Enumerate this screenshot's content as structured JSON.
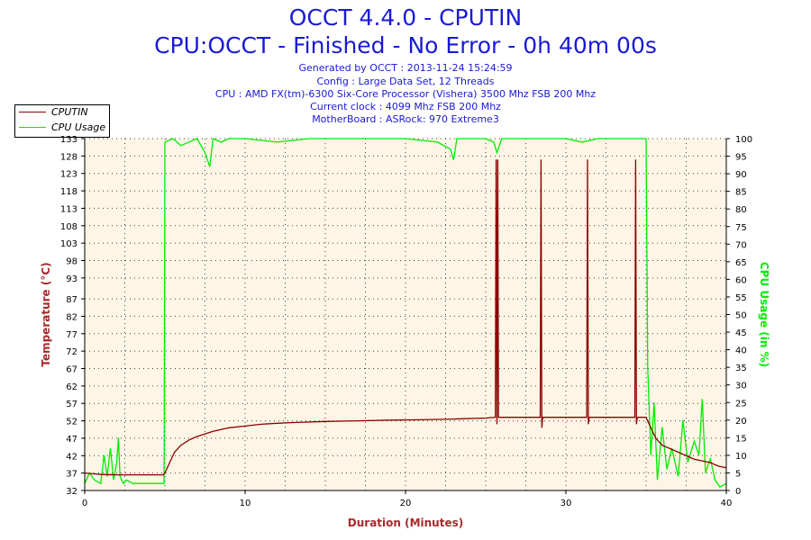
{
  "header": {
    "title": "OCCT 4.4.0 - CPUTIN",
    "subtitle": "CPU:OCCT - Finished - No Error - 0h 40m 00s",
    "info_lines": [
      "Generated by OCCT : 2013-11-24 15:24:59",
      "Config : Large Data Set, 12 Threads",
      "CPU : AMD FX(tm)-6300 Six-Core Processor (Vishera) 3500 Mhz FSB 200 Mhz",
      "Current clock : 4099 Mhz FSB 200 Mhz",
      "MotherBoard : ASRock: 970 Extreme3"
    ]
  },
  "legend": {
    "items": [
      {
        "label": "CPUTIN",
        "color": "#8b0000"
      },
      {
        "label": "CPU Usage",
        "color": "#00ee00"
      }
    ]
  },
  "chart_data": {
    "type": "line",
    "title": "OCCT 4.4.0 - CPUTIN",
    "xlabel": "Duration (Minutes)",
    "ylabel": "Temperature (°C)",
    "y2label": "CPU Usage (in %)",
    "xlim": [
      0,
      40
    ],
    "ylim": [
      32,
      133
    ],
    "y2lim": [
      0,
      100
    ],
    "x_ticks": [
      0,
      10,
      20,
      30,
      40
    ],
    "y_ticks": [
      32,
      37,
      42,
      47,
      52,
      57,
      62,
      67,
      72,
      77,
      82,
      87,
      93,
      98,
      103,
      108,
      113,
      118,
      123,
      128,
      133
    ],
    "y2_ticks": [
      0,
      5,
      10,
      15,
      20,
      25,
      30,
      35,
      40,
      45,
      50,
      55,
      60,
      65,
      70,
      75,
      80,
      85,
      90,
      95,
      100
    ],
    "grid": true,
    "colors": {
      "temperature": "#8b0000",
      "usage": "#00ee00",
      "plot_background": "#fdf5e6",
      "title": "#1a1ad6",
      "axis_label": "#a52a2a"
    },
    "series": [
      {
        "name": "CPUTIN",
        "axis": "left",
        "x": [
          0,
          0.5,
          1,
          2,
          3,
          4,
          4.9,
          5.0,
          5.3,
          5.6,
          6,
          6.5,
          7,
          8,
          9,
          10,
          11,
          12,
          13,
          15,
          17,
          19,
          21,
          23,
          25,
          25.6,
          25.65,
          25.7,
          25.75,
          25.8,
          25.9,
          26.5,
          28.4,
          28.45,
          28.5,
          28.55,
          28.6,
          29,
          30,
          31.3,
          31.35,
          31.4,
          31.45,
          31.5,
          32,
          33,
          34.3,
          34.35,
          34.4,
          34.45,
          34.5,
          35,
          35.3,
          35.6,
          36,
          36.5,
          37,
          37.5,
          38,
          38.5,
          39,
          39.5,
          40
        ],
        "y": [
          37,
          36.8,
          36.6,
          36.5,
          36.5,
          36.5,
          36.5,
          37,
          40,
          43,
          45,
          46.5,
          47.5,
          49,
          50,
          50.5,
          51,
          51.3,
          51.5,
          51.8,
          52,
          52.2,
          52.3,
          52.5,
          52.8,
          53,
          127,
          51,
          127,
          53,
          53,
          53,
          53,
          127,
          50,
          53,
          53,
          53,
          53,
          53,
          127,
          51,
          53,
          53,
          53,
          53,
          53,
          127,
          51,
          53,
          53,
          53,
          50,
          47,
          45,
          44,
          43,
          42,
          41,
          40.5,
          40,
          39,
          38.5
        ]
      },
      {
        "name": "CPU Usage",
        "axis": "right",
        "x": [
          0,
          0.3,
          0.6,
          1.0,
          1.2,
          1.4,
          1.6,
          1.8,
          2.0,
          2.1,
          2.2,
          2.4,
          2.6,
          3,
          3.5,
          4,
          4.5,
          4.95,
          5.0,
          5.5,
          6,
          7,
          7.5,
          7.8,
          8,
          8.5,
          9,
          10,
          12,
          14,
          16,
          18,
          20,
          22,
          22.8,
          23,
          23.2,
          24,
          25,
          25.5,
          25.7,
          26,
          28,
          30,
          31,
          32,
          33,
          34,
          34.9,
          35.0,
          35.1,
          35.3,
          35.5,
          35.7,
          36,
          36.3,
          36.6,
          37,
          37.3,
          37.6,
          38,
          38.3,
          38.5,
          38.7,
          39,
          39.3,
          39.6,
          40
        ],
        "y": [
          2,
          5,
          3,
          2,
          10,
          4,
          12,
          3,
          8,
          15,
          4,
          2,
          3,
          2,
          2,
          2,
          2,
          2,
          99,
          100,
          98,
          100,
          96,
          92,
          100,
          99,
          100,
          100,
          99,
          100,
          100,
          100,
          100,
          99,
          97,
          94,
          100,
          100,
          100,
          99,
          96,
          100,
          100,
          100,
          99,
          100,
          100,
          100,
          100,
          100,
          35,
          10,
          25,
          3,
          18,
          6,
          12,
          4,
          20,
          8,
          14,
          10,
          26,
          5,
          9,
          3,
          1,
          2
        ]
      }
    ]
  }
}
